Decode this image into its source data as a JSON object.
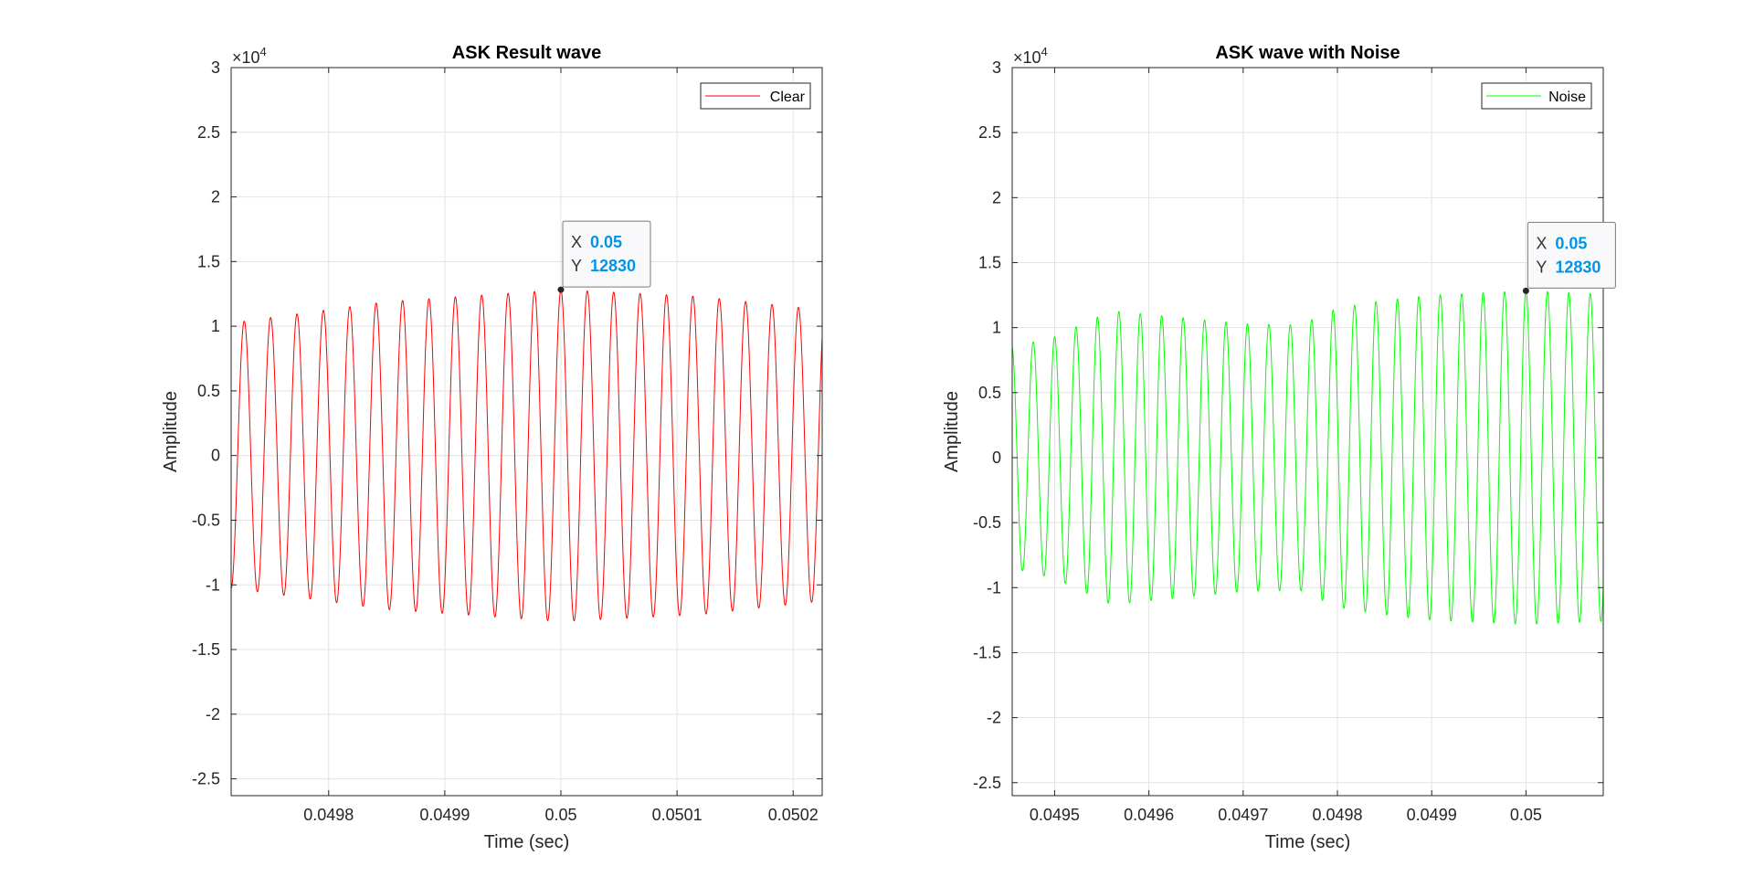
{
  "colors": {
    "grid": "#e3e3e3",
    "axis": "#262626",
    "datatip": "#0095e8"
  },
  "chart_data": [
    {
      "type": "line",
      "title": "ASK Result wave",
      "xlabel": "Time (sec)",
      "ylabel": "Amplitude",
      "y_exponent": "×10",
      "y_exponent_power": "4",
      "xlim": [
        0.049716,
        0.050225
      ],
      "ylim": [
        -26300,
        30000
      ],
      "x_ticks": [
        0.0498,
        0.0499,
        0.05,
        0.0501,
        0.0502
      ],
      "x_tick_labels": [
        "0.0498",
        "0.0499",
        "0.05",
        "0.0501",
        "0.0502"
      ],
      "y_ticks": [
        -25000,
        -20000,
        -15000,
        -10000,
        -5000,
        0,
        5000,
        10000,
        15000,
        20000,
        25000,
        30000
      ],
      "y_tick_labels": [
        "-2.5",
        "-2",
        "-1.5",
        "-1",
        "-0.5",
        "0",
        "0.5",
        "1",
        "1.5",
        "2",
        "2.5",
        "3"
      ],
      "grid": true,
      "legend_position": "top-right",
      "series": [
        {
          "name": "Clear",
          "color": "#ff0000",
          "waveform": {
            "frequency": 44000,
            "peak_time": 0.05,
            "amplitude_envelope": [
              [
                0.04972,
                10300
              ],
              [
                0.04985,
                11900
              ],
              [
                0.05,
                12830
              ],
              [
                0.05012,
                12300
              ],
              [
                0.05022,
                11300
              ]
            ]
          }
        }
      ],
      "datatip": {
        "x": 0.05,
        "y": 12830,
        "x_key": "X",
        "y_key": "Y",
        "x_text": "0.05",
        "y_text": "12830"
      }
    },
    {
      "type": "line",
      "title": "ASK wave with Noise",
      "xlabel": "Time (sec)",
      "ylabel": "Amplitude",
      "y_exponent": "×10",
      "y_exponent_power": "4",
      "xlim": [
        0.049455,
        0.050082
      ],
      "ylim": [
        -26000,
        30000
      ],
      "x_ticks": [
        0.0495,
        0.0496,
        0.0497,
        0.0498,
        0.0499,
        0.05
      ],
      "x_tick_labels": [
        "0.0495",
        "0.0496",
        "0.0497",
        "0.0498",
        "0.0499",
        "0.05"
      ],
      "y_ticks": [
        -25000,
        -20000,
        -15000,
        -10000,
        -5000,
        0,
        5000,
        10000,
        15000,
        20000,
        25000,
        30000
      ],
      "y_tick_labels": [
        "-2.5",
        "-2",
        "-1.5",
        "-1",
        "-0.5",
        "0",
        "0.5",
        "1",
        "1.5",
        "2",
        "2.5",
        "3"
      ],
      "grid": true,
      "legend_position": "top-right",
      "series": [
        {
          "name": "Noise",
          "color": "#00ff00",
          "waveform": {
            "frequency": 44000,
            "peak_time": 0.05,
            "amplitude_envelope": [
              [
                0.04946,
                8600
              ],
              [
                0.0495,
                9300
              ],
              [
                0.04956,
                11300
              ],
              [
                0.0497,
                10300
              ],
              [
                0.04976,
                10200
              ],
              [
                0.0498,
                11500
              ],
              [
                0.04984,
                12000
              ],
              [
                0.0499,
                12500
              ],
              [
                0.04996,
                12700
              ],
              [
                0.05,
                12830
              ],
              [
                0.05008,
                12600
              ]
            ]
          }
        }
      ],
      "datatip": {
        "x": 0.05,
        "y": 12830,
        "x_key": "X",
        "y_key": "Y",
        "x_text": "0.05",
        "y_text": "12830"
      }
    }
  ]
}
